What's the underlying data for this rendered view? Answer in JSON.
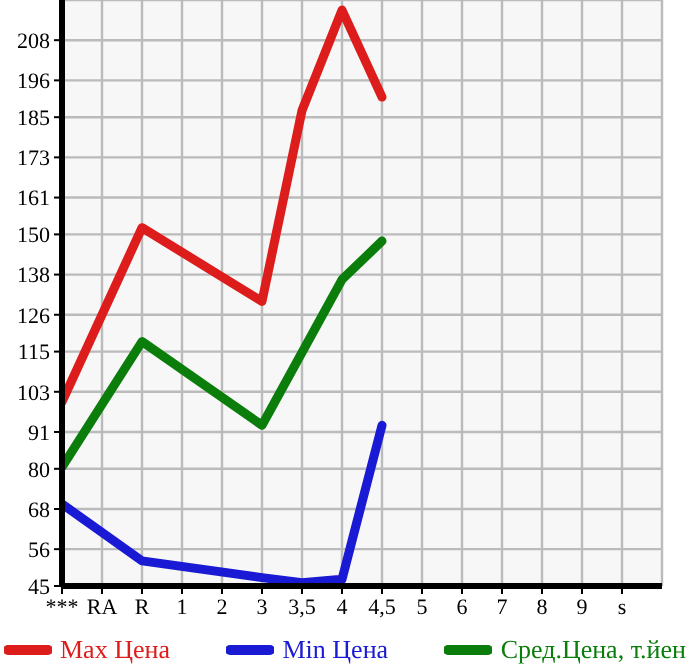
{
  "chart_data": {
    "type": "line",
    "categories": [
      "***",
      "RA",
      "R",
      "1",
      "2",
      "3",
      "3,5",
      "4",
      "4,5",
      "5",
      "6",
      "7",
      "8",
      "9",
      "s"
    ],
    "series": [
      {
        "name": "Max Цена",
        "color": "#dd1c1c",
        "values": [
          100,
          null,
          152,
          null,
          null,
          130,
          187,
          217,
          191,
          null,
          null,
          null,
          null,
          null,
          null
        ]
      },
      {
        "name": "Min Цена",
        "color": "#1a1ad4",
        "values": [
          69.5,
          null,
          52.5,
          null,
          null,
          47.5,
          46,
          47,
          93,
          null,
          null,
          null,
          null,
          null,
          null
        ]
      },
      {
        "name": "Сред.Цена, т.йен",
        "color": "#0a7d0a",
        "values": [
          80.5,
          null,
          118,
          null,
          null,
          93,
          null,
          136.5,
          148,
          null,
          null,
          null,
          null,
          null,
          null
        ]
      }
    ],
    "ylim": [
      45,
      220
    ],
    "yticks": [
      45,
      56,
      68,
      80,
      91,
      103,
      115,
      126,
      138,
      150,
      161,
      173,
      185,
      196,
      208
    ],
    "grid": true,
    "legend": "bottom",
    "marker": "none",
    "line_style": "solid"
  }
}
